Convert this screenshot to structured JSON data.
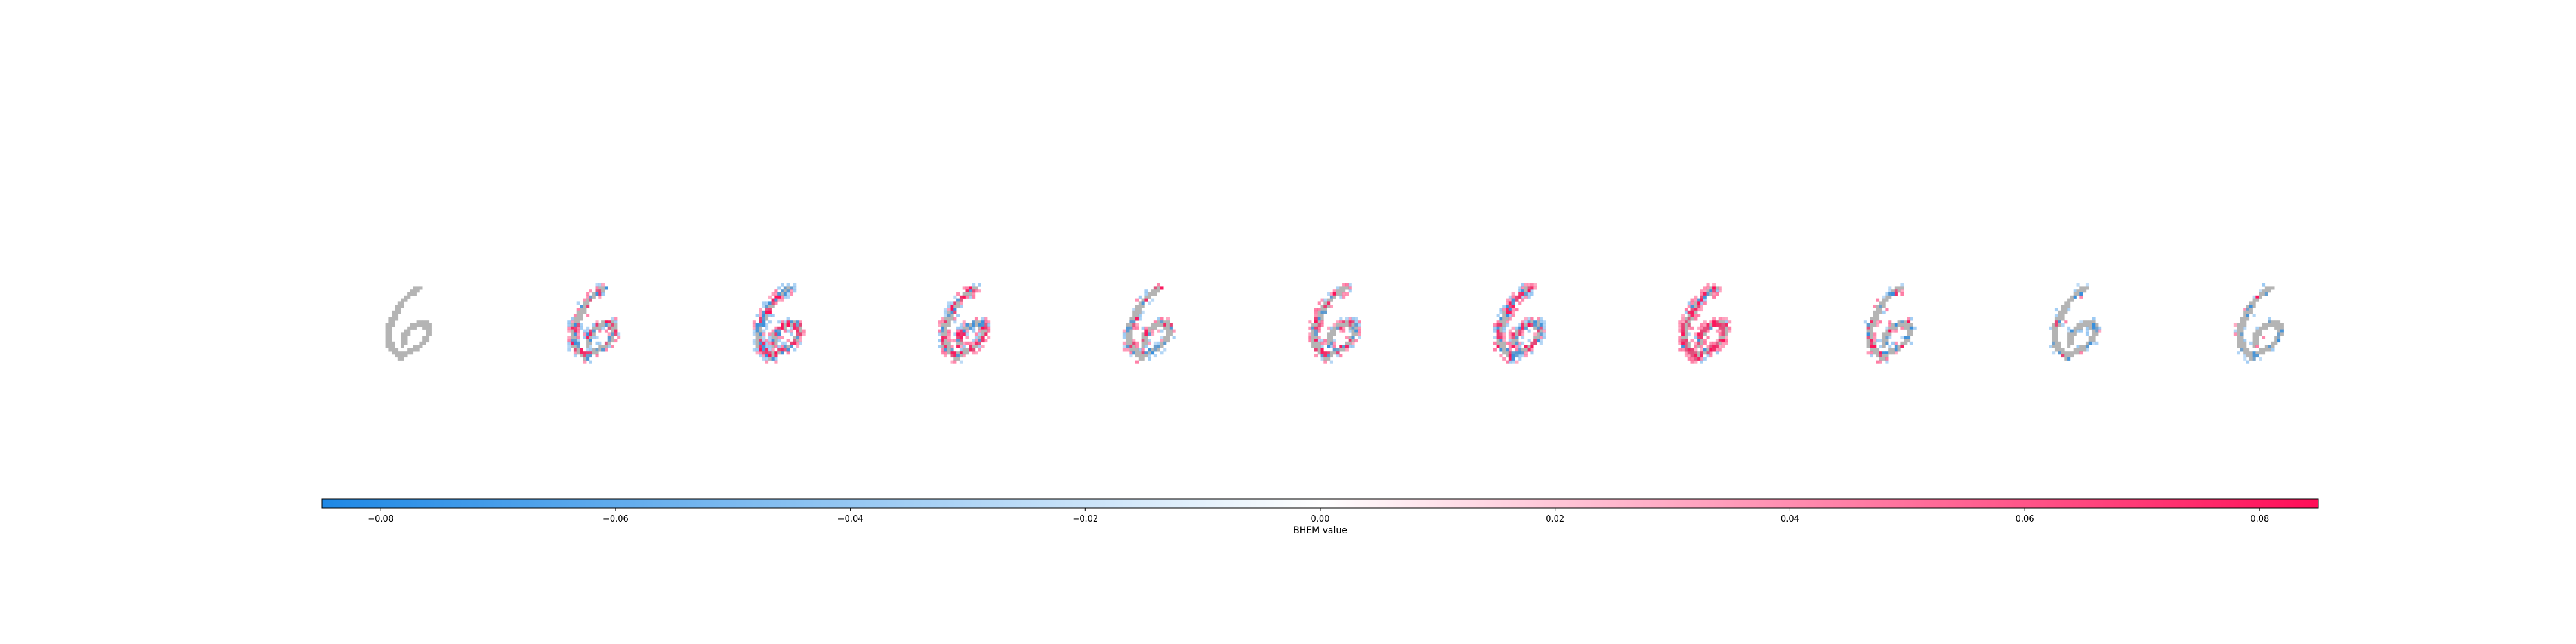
{
  "chart_data": {
    "type": "heatmap",
    "panel_count": 11,
    "colorbar": {
      "label": "BHEM value",
      "range": [
        -0.085,
        0.085
      ],
      "ticks": [
        -0.08,
        -0.06,
        -0.04,
        -0.02,
        0.0,
        0.02,
        0.04,
        0.06,
        0.08
      ],
      "tick_labels": [
        "−0.08",
        "−0.06",
        "−0.04",
        "−0.02",
        "0.00",
        "0.02",
        "0.04",
        "0.06",
        "0.08"
      ],
      "colors": {
        "negative": "#1e88e5",
        "neutral": "#ffffff",
        "positive": "#ff0d57"
      },
      "orientation": "horizontal"
    },
    "digit_pixel_color": "#b4b4b4",
    "panels": [
      {
        "index": 0,
        "role": "original-image",
        "pos_weight": 0.0,
        "neg_weight": 0.0
      },
      {
        "index": 1,
        "pos_weight": 0.35,
        "neg_weight": 0.45
      },
      {
        "index": 2,
        "pos_weight": 0.55,
        "neg_weight": 0.75
      },
      {
        "index": 3,
        "pos_weight": 0.6,
        "neg_weight": 0.7
      },
      {
        "index": 4,
        "pos_weight": 0.25,
        "neg_weight": 0.35
      },
      {
        "index": 5,
        "pos_weight": 0.45,
        "neg_weight": 0.55
      },
      {
        "index": 6,
        "pos_weight": 0.6,
        "neg_weight": 0.8
      },
      {
        "index": 7,
        "pos_weight": 1.0,
        "neg_weight": 0.2
      },
      {
        "index": 8,
        "pos_weight": 0.2,
        "neg_weight": 0.3
      },
      {
        "index": 9,
        "pos_weight": 0.05,
        "neg_weight": 0.2
      },
      {
        "index": 10,
        "pos_weight": 0.05,
        "neg_weight": 0.25
      }
    ]
  }
}
